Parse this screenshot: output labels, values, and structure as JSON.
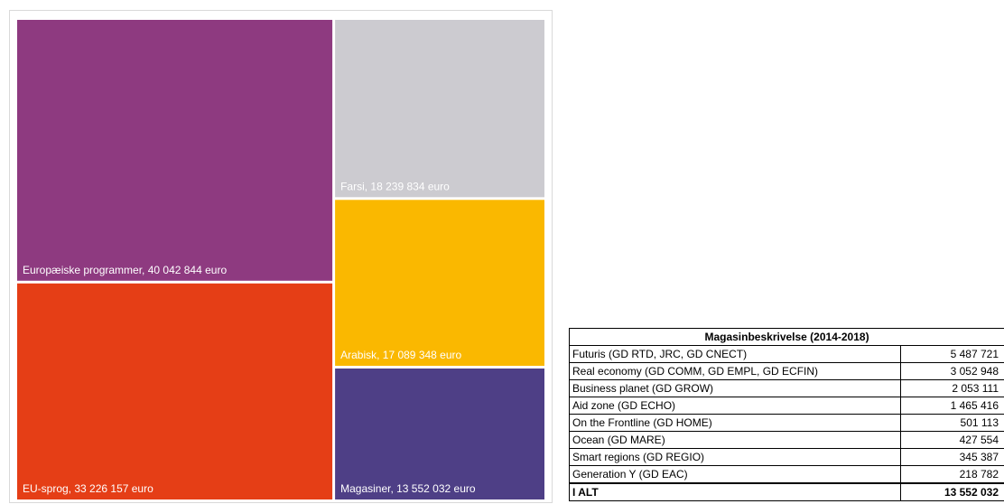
{
  "chart_data": [
    {
      "type": "treemap",
      "unit": "euro",
      "items": [
        {
          "name": "Europæiske programmer",
          "value": 40042844,
          "label": "Europæiske programmer, 40 042 844  euro",
          "color": "#8e3a80"
        },
        {
          "name": "EU-sprog",
          "value": 33226157,
          "label": "EU-sprog, 33 226 157  euro",
          "color": "#e53e16"
        },
        {
          "name": "Farsi",
          "value": 18239834,
          "label": "Farsi, 18 239 834  euro",
          "color": "#cccbd0"
        },
        {
          "name": "Arabisk",
          "value": 17089348,
          "label": "Arabisk, 17 089 348  euro",
          "color": "#fab800"
        },
        {
          "name": "Magasiner",
          "value": 13552032,
          "label": "Magasiner, 13 552 032  euro",
          "color": "#4e3f86"
        }
      ]
    },
    {
      "type": "table",
      "title": "Magasinbeskrivelse (2014-2018)",
      "rows": [
        {
          "label": "Futuris (GD RTD, JRC, GD CNECT)",
          "value": "5 487 721"
        },
        {
          "label": "Real economy (GD COMM, GD EMPL, GD ECFIN)",
          "value": "3 052 948"
        },
        {
          "label": "Business planet (GD GROW)",
          "value": "2 053 111"
        },
        {
          "label": "Aid zone (GD ECHO)",
          "value": "1 465 416"
        },
        {
          "label": "On the Frontline (GD HOME)",
          "value": "501 113"
        },
        {
          "label": "Ocean (GD MARE)",
          "value": "427 554"
        },
        {
          "label": "Smart regions (GD REGIO)",
          "value": "345 387"
        },
        {
          "label": "Generation Y (GD EAC)",
          "value": "218 782"
        }
      ],
      "total": {
        "label": "I ALT",
        "value": "13 552 032"
      }
    }
  ]
}
